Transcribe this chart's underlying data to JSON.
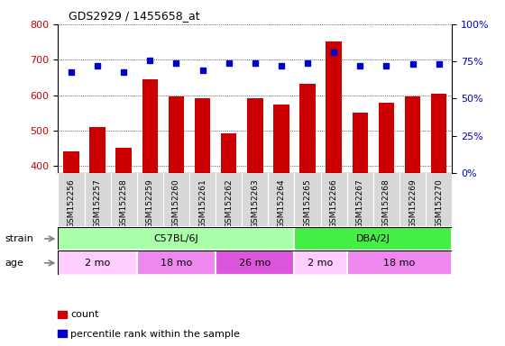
{
  "title": "GDS2929 / 1455658_at",
  "samples": [
    "GSM152256",
    "GSM152257",
    "GSM152258",
    "GSM152259",
    "GSM152260",
    "GSM152261",
    "GSM152262",
    "GSM152263",
    "GSM152264",
    "GSM152265",
    "GSM152266",
    "GSM152267",
    "GSM152268",
    "GSM152269",
    "GSM152270"
  ],
  "counts": [
    440,
    510,
    450,
    645,
    595,
    590,
    493,
    590,
    573,
    633,
    752,
    551,
    578,
    597,
    603
  ],
  "percentiles": [
    68,
    72,
    68,
    76,
    74,
    69,
    74,
    74,
    72,
    74,
    81,
    72,
    72,
    73,
    73
  ],
  "ylim_left": [
    380,
    800
  ],
  "ylim_right": [
    0,
    100
  ],
  "yticks_left": [
    400,
    500,
    600,
    700,
    800
  ],
  "yticks_right": [
    0,
    25,
    50,
    75,
    100
  ],
  "bar_color": "#cc0000",
  "dot_color": "#0000cc",
  "grid_color": "#000000",
  "strain_groups": [
    {
      "label": "C57BL/6J",
      "start": 0,
      "end": 9,
      "color": "#aaffaa"
    },
    {
      "label": "DBA/2J",
      "start": 9,
      "end": 15,
      "color": "#44ee44"
    }
  ],
  "age_groups": [
    {
      "label": "2 mo",
      "start": 0,
      "end": 3,
      "color": "#ffccff"
    },
    {
      "label": "18 mo",
      "start": 3,
      "end": 6,
      "color": "#ee88ee"
    },
    {
      "label": "26 mo",
      "start": 6,
      "end": 9,
      "color": "#dd55dd"
    },
    {
      "label": "2 mo",
      "start": 9,
      "end": 11,
      "color": "#ffccff"
    },
    {
      "label": "18 mo",
      "start": 11,
      "end": 15,
      "color": "#ee88ee"
    }
  ],
  "legend_items": [
    {
      "label": "count",
      "color": "#cc0000"
    },
    {
      "label": "percentile rank within the sample",
      "color": "#0000cc"
    }
  ],
  "bar_width": 0.6,
  "tick_label_color_left": "#cc0000",
  "tick_label_color_right": "#0000cc",
  "background_color": "#ffffff",
  "plot_bg": "#ffffff",
  "xticklabel_area_color": "#d8d8d8"
}
